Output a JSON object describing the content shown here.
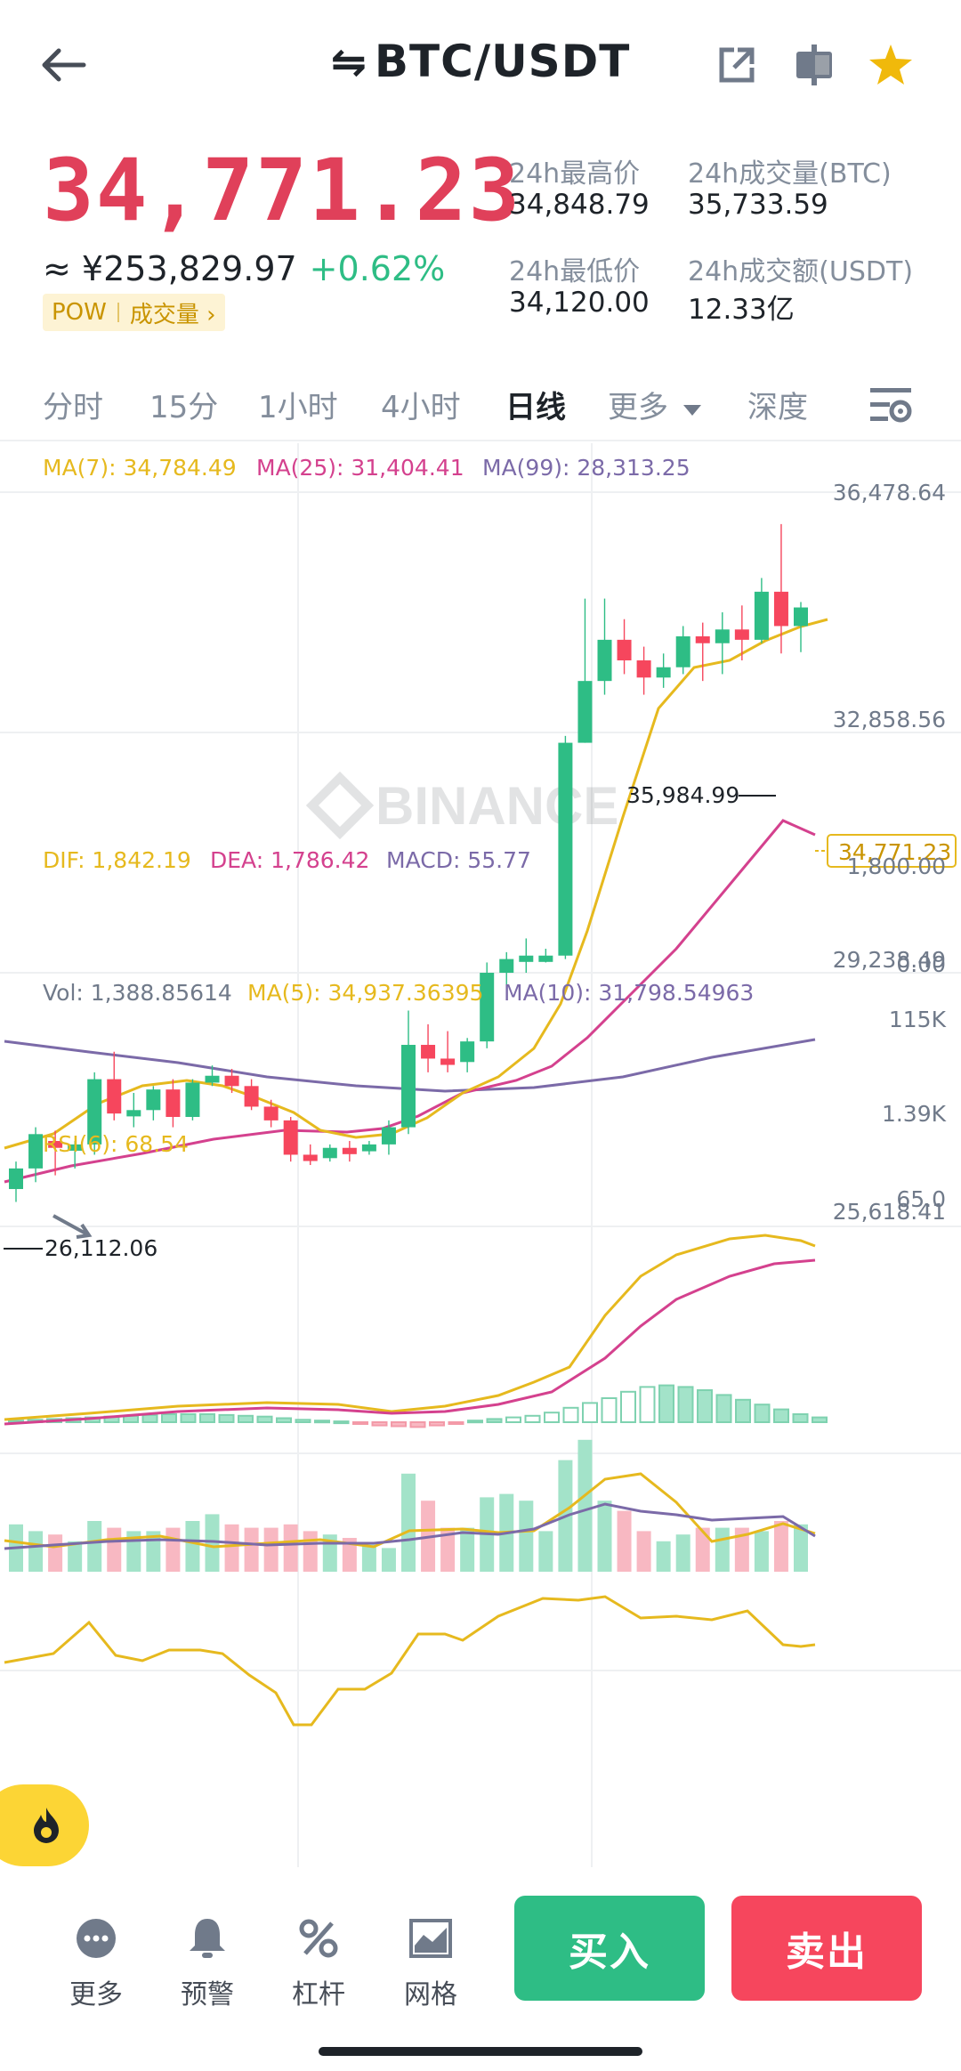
{
  "header": {
    "title": "BTC/USDT",
    "swap_glyph": "⇋"
  },
  "price": {
    "last": "34,771.23",
    "cny": "≈ ¥253,829.97",
    "change": "+0.62%",
    "tag_left": "POW",
    "tag_right": "成交量 ›"
  },
  "stats": {
    "high_label": "24h最高价",
    "high_value": "34,848.79",
    "low_label": "24h最低价",
    "low_value": "34,120.00",
    "vol_btc_label": "24h成交量(BTC)",
    "vol_btc_value": "35,733.59",
    "vol_usdt_label": "24h成交额(USDT)",
    "vol_usdt_value": "12.33亿"
  },
  "tabs": [
    "分时",
    "15分",
    "1小时",
    "4小时",
    "日线",
    "更多",
    "深度"
  ],
  "active_tab": "日线",
  "chart": {
    "ma7": "MA(7): 34,784.49",
    "ma25": "MA(25): 31,404.41",
    "ma99": "MA(99): 28,313.25",
    "axis": [
      "36,478.64",
      "32,858.56",
      "29,238.49",
      "25,618.41"
    ],
    "current_tag": "34,771.23",
    "high_marker": "35,984.99",
    "low_marker": "26,112.06",
    "watermark": "BINANCE",
    "macd_dif": "DIF: 1,842.19",
    "macd_dea": "DEA: 1,786.42",
    "macd_macd": "MACD: 55.77",
    "macd_axis": [
      "1,800.00",
      "0.00"
    ],
    "vol_label": "Vol: 1,388.85614",
    "vol_ma5": "MA(5): 34,937.36395",
    "vol_ma10": "MA(10): 31,798.54963",
    "vol_axis": [
      "115K",
      "1.39K"
    ],
    "rsi_label": "RSI(6): 68.54",
    "rsi_axis": "65.0"
  },
  "chart_data": {
    "type": "candlestick",
    "candles": [
      {
        "o": 26300,
        "h": 26700,
        "l": 26112,
        "c": 26600
      },
      {
        "o": 26600,
        "h": 27200,
        "l": 26400,
        "c": 27100
      },
      {
        "o": 27000,
        "h": 27150,
        "l": 26500,
        "c": 26900
      },
      {
        "o": 26900,
        "h": 27000,
        "l": 26600,
        "c": 26950
      },
      {
        "o": 26950,
        "h": 28000,
        "l": 26800,
        "c": 27900
      },
      {
        "o": 27900,
        "h": 28300,
        "l": 27300,
        "c": 27400
      },
      {
        "o": 27400,
        "h": 27700,
        "l": 27200,
        "c": 27450
      },
      {
        "o": 27450,
        "h": 27800,
        "l": 27300,
        "c": 27750
      },
      {
        "o": 27750,
        "h": 27900,
        "l": 27200,
        "c": 27350
      },
      {
        "o": 27350,
        "h": 27900,
        "l": 27300,
        "c": 27850
      },
      {
        "o": 27850,
        "h": 28100,
        "l": 27800,
        "c": 27950
      },
      {
        "o": 27950,
        "h": 28050,
        "l": 27700,
        "c": 27800
      },
      {
        "o": 27800,
        "h": 27900,
        "l": 27450,
        "c": 27500
      },
      {
        "o": 27500,
        "h": 27600,
        "l": 27200,
        "c": 27300
      },
      {
        "o": 27300,
        "h": 27350,
        "l": 26700,
        "c": 26800
      },
      {
        "o": 26800,
        "h": 26950,
        "l": 26650,
        "c": 26750
      },
      {
        "o": 26750,
        "h": 26950,
        "l": 26700,
        "c": 26900
      },
      {
        "o": 26900,
        "h": 27000,
        "l": 26700,
        "c": 26850
      },
      {
        "o": 26850,
        "h": 27000,
        "l": 26800,
        "c": 26950
      },
      {
        "o": 26950,
        "h": 27300,
        "l": 26800,
        "c": 27200
      },
      {
        "o": 27200,
        "h": 28900,
        "l": 27100,
        "c": 28400
      },
      {
        "o": 28400,
        "h": 28700,
        "l": 28000,
        "c": 28200
      },
      {
        "o": 28200,
        "h": 28600,
        "l": 28000,
        "c": 28150
      },
      {
        "o": 28150,
        "h": 28500,
        "l": 28000,
        "c": 28450
      },
      {
        "o": 28450,
        "h": 29600,
        "l": 28350,
        "c": 29450
      },
      {
        "o": 29450,
        "h": 29750,
        "l": 29150,
        "c": 29650
      },
      {
        "o": 29650,
        "h": 29950,
        "l": 29450,
        "c": 29700
      },
      {
        "o": 29700,
        "h": 29800,
        "l": 29600,
        "c": 29700
      },
      {
        "o": 29700,
        "h": 32900,
        "l": 29650,
        "c": 32800
      },
      {
        "o": 32800,
        "h": 34900,
        "l": 32800,
        "c": 33700
      },
      {
        "o": 33700,
        "h": 34900,
        "l": 33500,
        "c": 34300
      },
      {
        "o": 34300,
        "h": 34600,
        "l": 33800,
        "c": 34000
      },
      {
        "o": 34000,
        "h": 34200,
        "l": 33500,
        "c": 33750
      },
      {
        "o": 33750,
        "h": 34100,
        "l": 33600,
        "c": 33900
      },
      {
        "o": 33900,
        "h": 34500,
        "l": 33800,
        "c": 34350
      },
      {
        "o": 34350,
        "h": 34550,
        "l": 33700,
        "c": 34250
      },
      {
        "o": 34250,
        "h": 34700,
        "l": 33800,
        "c": 34450
      },
      {
        "o": 34450,
        "h": 34800,
        "l": 34000,
        "c": 34300
      },
      {
        "o": 34300,
        "h": 35200,
        "l": 34250,
        "c": 35000
      },
      {
        "o": 35000,
        "h": 35985,
        "l": 34100,
        "c": 34500
      },
      {
        "o": 34500,
        "h": 34850,
        "l": 34120,
        "c": 34771
      }
    ],
    "ylim": [
      25618.41,
      36478.64
    ]
  },
  "bottom": {
    "more": "更多",
    "alert": "预警",
    "leverage": "杠杆",
    "grid": "网格",
    "buy": "买入",
    "sell": "卖出"
  },
  "colors": {
    "up": "#2ebd85",
    "down": "#f6465d",
    "ma7": "#e6b91e",
    "ma25": "#d4418e",
    "ma99": "#7b6aa8",
    "accent": "#fcd535"
  }
}
